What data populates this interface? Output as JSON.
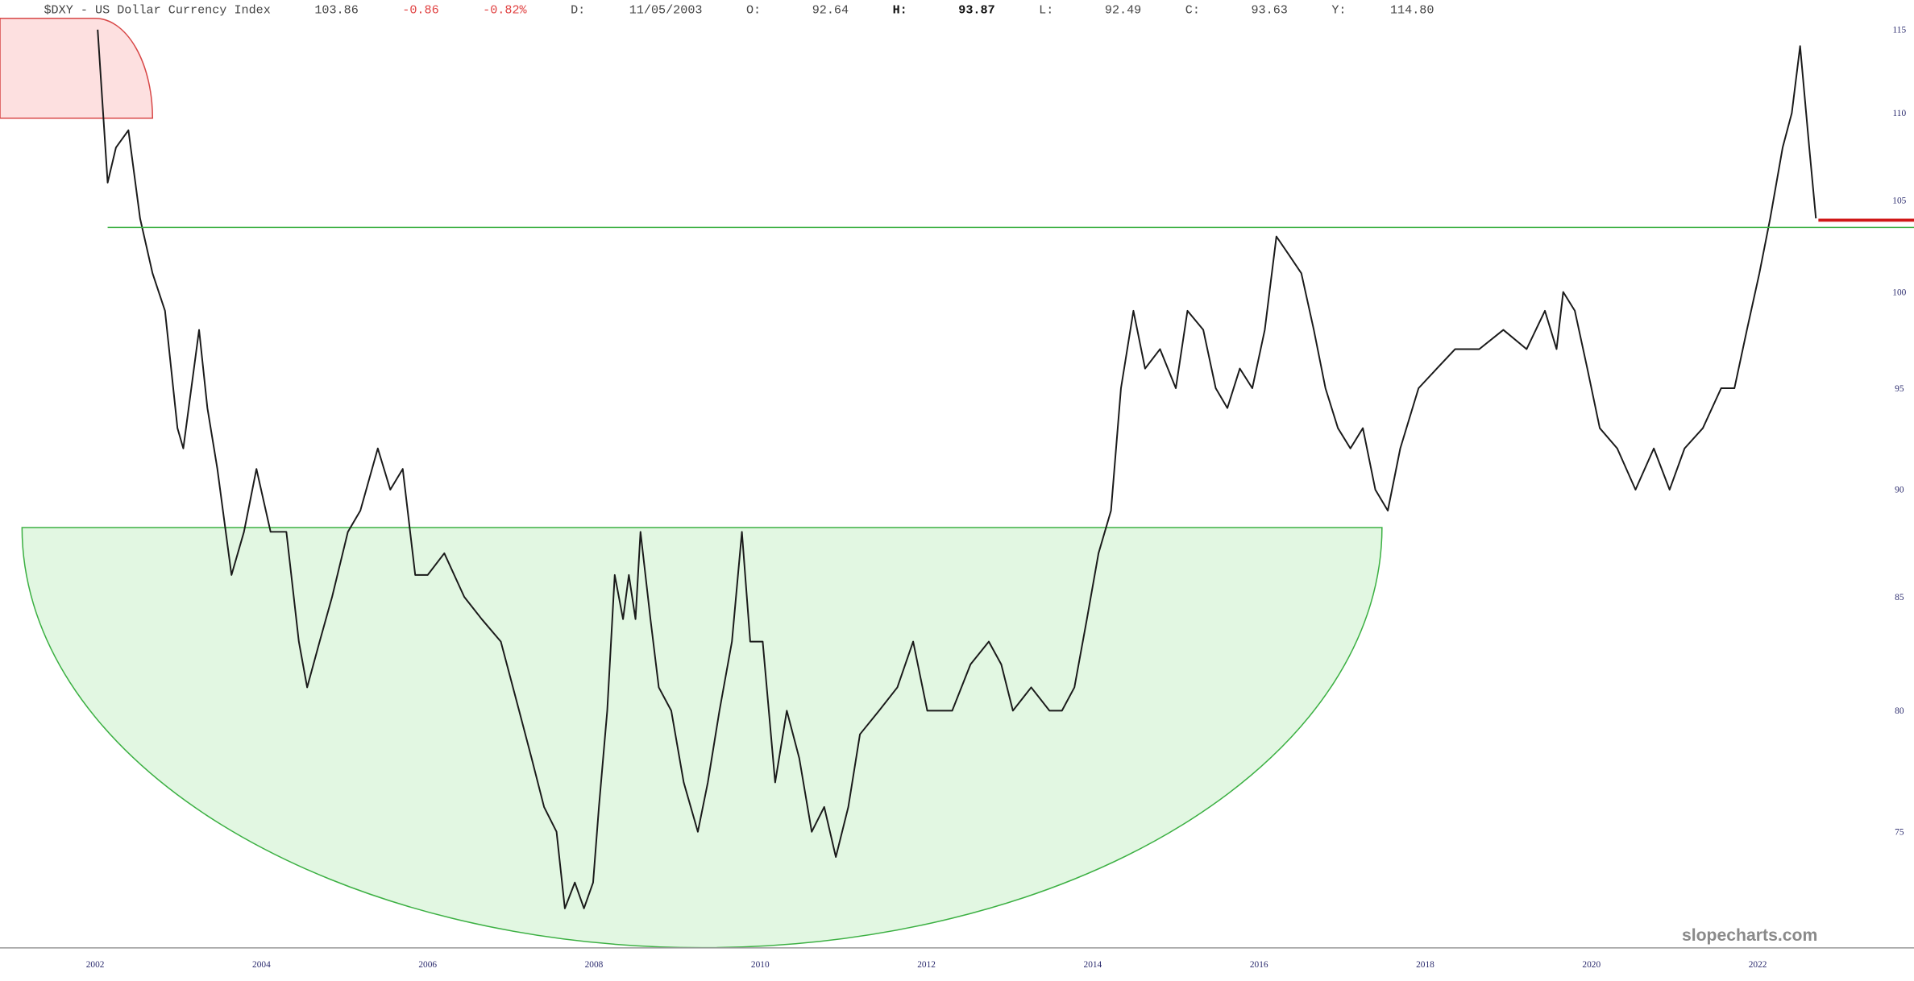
{
  "chart_data": {
    "type": "line",
    "header": {
      "symbol": "$DXY - US Dollar Currency Index",
      "last": "103.86",
      "change": "-0.86",
      "change_pct": "-0.82%",
      "date_label": "D:",
      "date": "11/05/2003",
      "open_label": "O:",
      "open": "92.64",
      "high_label": "H:",
      "high": "93.87",
      "low_label": "L:",
      "low": "92.49",
      "close_label": "C:",
      "close": "93.63",
      "year_label": "Y:",
      "year_high": "114.80"
    },
    "watermark": "slopecharts.com",
    "log_scale": true,
    "xlim": [
      2000.855,
      2023.88
    ],
    "ylim": [
      70.5,
      115.7
    ],
    "xticks": [
      2002,
      2004,
      2006,
      2008,
      2010,
      2012,
      2014,
      2016,
      2018,
      2020,
      2022
    ],
    "yticks": [
      75,
      80,
      85,
      90,
      95,
      100,
      105,
      110,
      115
    ],
    "series": [
      {
        "name": "$DXY",
        "color": "#1a1a1a",
        "x": [
          2002.03,
          2002.15,
          2002.25,
          2002.4,
          2002.54,
          2002.69,
          2002.84,
          2002.99,
          2003.06,
          2003.25,
          2003.35,
          2003.47,
          2003.64,
          2003.79,
          2003.94,
          2004.11,
          2004.3,
          2004.45,
          2004.55,
          2004.7,
          2004.85,
          2005.04,
          2005.19,
          2005.4,
          2005.55,
          2005.7,
          2005.85,
          2006.0,
          2006.2,
          2006.44,
          2006.65,
          2006.88,
          2007.1,
          2007.25,
          2007.4,
          2007.55,
          2007.65,
          2007.77,
          2007.88,
          2007.99,
          2008.06,
          2008.16,
          2008.25,
          2008.35,
          2008.42,
          2008.5,
          2008.56,
          2008.68,
          2008.78,
          2008.93,
          2009.08,
          2009.25,
          2009.37,
          2009.51,
          2009.66,
          2009.78,
          2009.88,
          2010.03,
          2010.18,
          2010.32,
          2010.47,
          2010.62,
          2010.77,
          2010.91,
          2011.06,
          2011.2,
          2011.43,
          2011.65,
          2011.84,
          2012.01,
          2012.16,
          2012.31,
          2012.53,
          2012.75,
          2012.9,
          2013.04,
          2013.26,
          2013.48,
          2013.63,
          2013.78,
          2013.93,
          2014.07,
          2014.22,
          2014.34,
          2014.49,
          2014.63,
          2014.81,
          2015.0,
          2015.14,
          2015.33,
          2015.48,
          2015.62,
          2015.77,
          2015.92,
          2016.07,
          2016.21,
          2016.36,
          2016.51,
          2016.66,
          2016.8,
          2016.95,
          2017.1,
          2017.25,
          2017.4,
          2017.55,
          2017.7,
          2017.92,
          2018.14,
          2018.36,
          2018.65,
          2018.94,
          2019.22,
          2019.44,
          2019.58,
          2019.66,
          2019.8,
          2019.95,
          2020.1,
          2020.31,
          2020.53,
          2020.75,
          2020.94,
          2021.12,
          2021.34,
          2021.56,
          2021.72,
          2021.87,
          2022.02,
          2022.15,
          2022.3,
          2022.41,
          2022.51,
          2022.62,
          2022.7
        ],
        "values": [
          115,
          106,
          108,
          109,
          104,
          101,
          99,
          93,
          92,
          98,
          94,
          91,
          86,
          88,
          91,
          88,
          88,
          83,
          81,
          83,
          85,
          88,
          89,
          92,
          90,
          91,
          86,
          86,
          87,
          85,
          84,
          83,
          80,
          78,
          76,
          75,
          72,
          73,
          72,
          73,
          76,
          80,
          86,
          84,
          86,
          84,
          88,
          84,
          81,
          80,
          77,
          75,
          77,
          80,
          83,
          88,
          83,
          83,
          77,
          80,
          78,
          75,
          76,
          74,
          76,
          79,
          80,
          81,
          83,
          80,
          80,
          80,
          82,
          83,
          82,
          80,
          81,
          80,
          80,
          81,
          84,
          87,
          89,
          95,
          99,
          96,
          97,
          95,
          99,
          98,
          95,
          94,
          96,
          95,
          98,
          103,
          102,
          101,
          98,
          95,
          93,
          92,
          93,
          90,
          89,
          92,
          95,
          96,
          97,
          97,
          98,
          97,
          99,
          97,
          100,
          99,
          96,
          93,
          92,
          90,
          92,
          90,
          92,
          93,
          95,
          95,
          98,
          101,
          104,
          108,
          110,
          114,
          108,
          104
        ]
      }
    ],
    "annotations": {
      "green_level": {
        "level": 103.5,
        "x_start": 2002.15,
        "color": "#3cb043"
      },
      "red_level": {
        "level": 103.9,
        "x_start": 2022.73,
        "color": "#d01818"
      },
      "cup": {
        "x": [
          2001.12,
          2017.48
        ],
        "top": 88.2,
        "bottom": 70.5,
        "color": "#3cb043",
        "fill": "#e2f7e2"
      },
      "top_zone": {
        "x": [
          2002.0,
          2002.69
        ],
        "bottom": 109.7,
        "color": "#d84848",
        "fill": "#fde0e0"
      }
    }
  }
}
